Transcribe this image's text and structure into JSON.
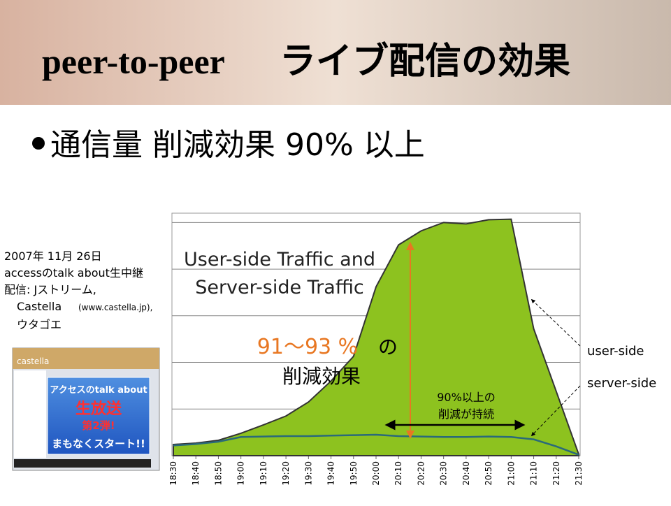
{
  "slide": {
    "title_latin": "peer-to-peer",
    "title_jp": "ライブ配信の効果",
    "bullet": "通信量 削減効果 90% 以上",
    "note": [
      "2007年 11月 26日",
      "accessのtalk about生中継",
      "配信: Jストリーム,",
      "Castella",
      "(www.castella.jp),",
      "ウタゴエ"
    ],
    "screenshot": {
      "logo": "castella",
      "banner": [
        "アクセスのtalk about",
        "生放送",
        "第2弾!",
        "まもなくスタート!!"
      ]
    }
  },
  "chart_data": {
    "type": "area",
    "title": [
      "User-side Traffic and",
      "Server-side Traffic"
    ],
    "annotations": [
      "91～93 %",
      "の",
      "削減効果",
      "90%以上の",
      "削減が持続"
    ],
    "categories": [
      "18:30",
      "18:40",
      "18:50",
      "19:00",
      "19:10",
      "19:20",
      "19:30",
      "19:40",
      "19:50",
      "20:00",
      "20:10",
      "20:20",
      "20:30",
      "20:40",
      "20:50",
      "21:00",
      "21:10",
      "21:20",
      "21:30"
    ],
    "series": [
      {
        "name": "user-side",
        "color": "#8dc21f",
        "values": [
          0.24,
          0.27,
          0.33,
          0.48,
          0.66,
          0.85,
          1.15,
          1.6,
          2.13,
          3.62,
          4.52,
          4.82,
          5.0,
          4.97,
          5.06,
          5.07,
          2.72,
          1.38,
          0.03
        ]
      },
      {
        "name": "server-side",
        "color": "#2a6a7a",
        "values": [
          0.22,
          0.25,
          0.3,
          0.4,
          0.41,
          0.42,
          0.42,
          0.43,
          0.44,
          0.45,
          0.42,
          0.41,
          0.4,
          0.4,
          0.41,
          0.4,
          0.35,
          0.2,
          0.02
        ]
      }
    ],
    "ylim": [
      0,
      5.2
    ],
    "yticks": [
      0,
      1,
      2,
      3,
      4,
      5
    ],
    "grid": true
  }
}
